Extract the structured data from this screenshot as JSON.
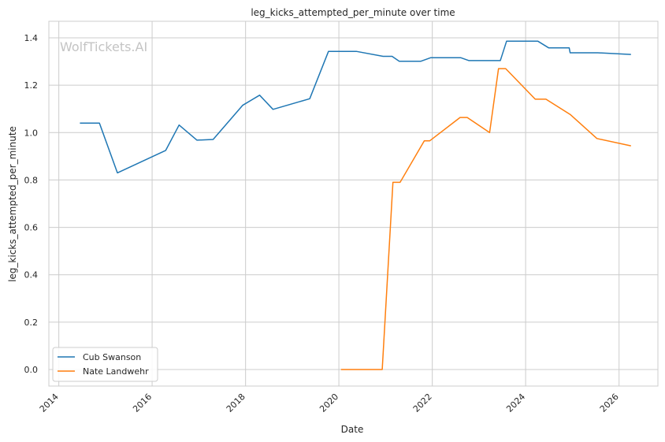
{
  "watermark": "WolfTickets.AI",
  "chart_data": {
    "type": "line",
    "title": "leg_kicks_attempted_per_minute over time",
    "xlabel": "Date",
    "ylabel": "leg_kicks_attempted_per_minute",
    "x_ticks": [
      "2014",
      "2016",
      "2018",
      "2020",
      "2022",
      "2024",
      "2026"
    ],
    "y_ticks": [
      "0.0",
      "0.2",
      "0.4",
      "0.6",
      "0.8",
      "1.0",
      "1.2",
      "1.4"
    ],
    "xlim": [
      "2013-10-15",
      "2026-11-01"
    ],
    "ylim": [
      -0.07,
      1.47
    ],
    "grid": true,
    "legend_position": "lower-left",
    "series": [
      {
        "name": "Cub Swanson",
        "color": "#1f77b4",
        "points": [
          [
            "2014-06-15",
            1.04
          ],
          [
            "2014-11-15",
            1.04
          ],
          [
            "2015-04-04",
            0.83
          ],
          [
            "2016-04-16",
            0.925
          ],
          [
            "2016-07-30",
            1.032
          ],
          [
            "2016-12-17",
            0.968
          ],
          [
            "2017-04-22",
            0.971
          ],
          [
            "2017-12-09",
            1.115
          ],
          [
            "2018-04-21",
            1.158
          ],
          [
            "2018-08-04",
            1.098
          ],
          [
            "2019-05-18",
            1.143
          ],
          [
            "2019-10-12",
            1.343
          ],
          [
            "2020-05-16",
            1.343
          ],
          [
            "2020-12-12",
            1.322
          ],
          [
            "2021-02-20",
            1.322
          ],
          [
            "2021-04-17",
            1.301
          ],
          [
            "2021-10-02",
            1.301
          ],
          [
            "2021-12-18",
            1.316
          ],
          [
            "2022-08-13",
            1.316
          ],
          [
            "2022-10-15",
            1.304
          ],
          [
            "2023-06-17",
            1.304
          ],
          [
            "2023-08-05",
            1.386
          ],
          [
            "2024-04-06",
            1.386
          ],
          [
            "2024-06-29",
            1.358
          ],
          [
            "2024-12-07",
            1.358
          ],
          [
            "2024-12-14",
            1.337
          ],
          [
            "2025-07-19",
            1.337
          ],
          [
            "2026-04-04",
            1.33
          ]
        ]
      },
      {
        "name": "Nate Landwehr",
        "color": "#ff7f0e",
        "points": [
          [
            "2020-01-18",
            0.0
          ],
          [
            "2020-12-05",
            0.0
          ],
          [
            "2021-02-27",
            0.79
          ],
          [
            "2021-04-24",
            0.79
          ],
          [
            "2021-10-30",
            0.965
          ],
          [
            "2021-12-11",
            0.965
          ],
          [
            "2022-08-06",
            1.064
          ],
          [
            "2022-10-01",
            1.064
          ],
          [
            "2023-03-25",
            1.0
          ],
          [
            "2023-06-03",
            1.27
          ],
          [
            "2023-07-29",
            1.27
          ],
          [
            "2024-03-16",
            1.141
          ],
          [
            "2024-06-08",
            1.141
          ],
          [
            "2024-12-14",
            1.077
          ],
          [
            "2025-07-12",
            0.975
          ],
          [
            "2026-04-04",
            0.944
          ]
        ]
      }
    ]
  }
}
